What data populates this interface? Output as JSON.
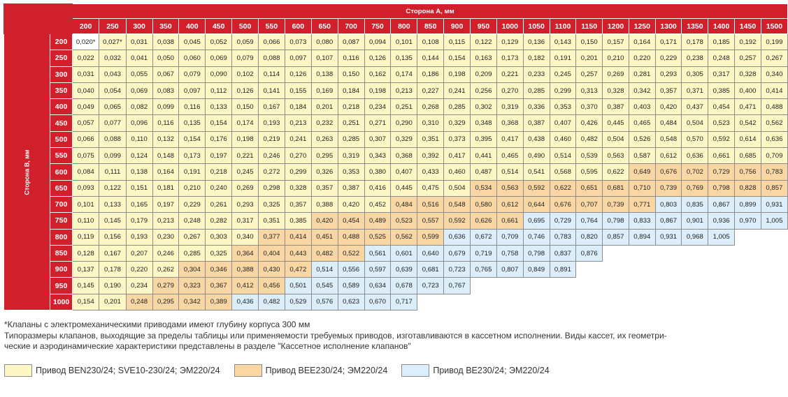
{
  "header": {
    "top_label": "Сторона А, мм",
    "side_label": "Сторона В, мм"
  },
  "columns": [
    "200",
    "250",
    "300",
    "350",
    "400",
    "450",
    "500",
    "550",
    "600",
    "650",
    "700",
    "750",
    "800",
    "850",
    "900",
    "950",
    "1000",
    "1050",
    "1100",
    "1150",
    "1200",
    "1250",
    "1300",
    "1350",
    "1400",
    "1450",
    "1500"
  ],
  "rows": [
    {
      "b": "200",
      "values": [
        "0,020*",
        "0,027*",
        "0,031",
        "0,038",
        "0,045",
        "0,052",
        "0,059",
        "0,066",
        "0,073",
        "0,080",
        "0,087",
        "0,094",
        "0,101",
        "0,108",
        "0,115",
        "0,122",
        "0,129",
        "0,136",
        "0,143",
        "0,150",
        "0,157",
        "0,164",
        "0,171",
        "0,178",
        "0,185",
        "0,192",
        "0,199"
      ],
      "colors": [
        0,
        1,
        1,
        1,
        1,
        1,
        1,
        1,
        1,
        1,
        1,
        1,
        1,
        1,
        1,
        1,
        1,
        1,
        1,
        1,
        1,
        1,
        1,
        1,
        1,
        1,
        1
      ]
    },
    {
      "b": "250",
      "values": [
        "0,022",
        "0,032",
        "0,041",
        "0,050",
        "0,060",
        "0,069",
        "0,079",
        "0,088",
        "0,097",
        "0,107",
        "0,116",
        "0,126",
        "0,135",
        "0,144",
        "0,154",
        "0,163",
        "0,173",
        "0,182",
        "0,191",
        "0,201",
        "0,210",
        "0,220",
        "0,229",
        "0,238",
        "0,248",
        "0,257",
        "0,267"
      ],
      "colors": [
        1,
        1,
        1,
        1,
        1,
        1,
        1,
        1,
        1,
        1,
        1,
        1,
        1,
        1,
        1,
        1,
        1,
        1,
        1,
        1,
        1,
        1,
        1,
        1,
        1,
        1,
        1
      ]
    },
    {
      "b": "300",
      "values": [
        "0,031",
        "0,043",
        "0,055",
        "0,067",
        "0,079",
        "0,090",
        "0,102",
        "0,114",
        "0,126",
        "0,138",
        "0,150",
        "0,162",
        "0,174",
        "0,186",
        "0,198",
        "0,209",
        "0,221",
        "0,233",
        "0,245",
        "0,257",
        "0,269",
        "0,281",
        "0,293",
        "0,305",
        "0,317",
        "0,328",
        "0,340"
      ],
      "colors": [
        1,
        1,
        1,
        1,
        1,
        1,
        1,
        1,
        1,
        1,
        1,
        1,
        1,
        1,
        1,
        1,
        1,
        1,
        1,
        1,
        1,
        1,
        1,
        1,
        1,
        1,
        1
      ]
    },
    {
      "b": "350",
      "values": [
        "0,040",
        "0,054",
        "0,069",
        "0,083",
        "0,097",
        "0,112",
        "0,126",
        "0,141",
        "0,155",
        "0,169",
        "0,184",
        "0,198",
        "0,213",
        "0,227",
        "0,241",
        "0,256",
        "0,270",
        "0,285",
        "0,299",
        "0,313",
        "0,328",
        "0,342",
        "0,357",
        "0,371",
        "0,385",
        "0,400",
        "0,414"
      ],
      "colors": [
        1,
        1,
        1,
        1,
        1,
        1,
        1,
        1,
        1,
        1,
        1,
        1,
        1,
        1,
        1,
        1,
        1,
        1,
        1,
        1,
        1,
        1,
        1,
        1,
        1,
        1,
        1
      ]
    },
    {
      "b": "400",
      "values": [
        "0,049",
        "0,065",
        "0,082",
        "0,099",
        "0,116",
        "0,133",
        "0,150",
        "0,167",
        "0,184",
        "0,201",
        "0,218",
        "0,234",
        "0,251",
        "0,268",
        "0,285",
        "0,302",
        "0,319",
        "0,336",
        "0,353",
        "0,370",
        "0,387",
        "0,403",
        "0,420",
        "0,437",
        "0,454",
        "0,471",
        "0,488"
      ],
      "colors": [
        1,
        1,
        1,
        1,
        1,
        1,
        1,
        1,
        1,
        1,
        1,
        1,
        1,
        1,
        1,
        1,
        1,
        1,
        1,
        1,
        1,
        1,
        1,
        1,
        1,
        1,
        1
      ]
    },
    {
      "b": "450",
      "values": [
        "0,057",
        "0,077",
        "0,096",
        "0,116",
        "0,135",
        "0,154",
        "0,174",
        "0,193",
        "0,213",
        "0,232",
        "0,251",
        "0,271",
        "0,290",
        "0,310",
        "0,329",
        "0,348",
        "0,368",
        "0,387",
        "0,407",
        "0,426",
        "0,445",
        "0,465",
        "0,484",
        "0,504",
        "0,523",
        "0,542",
        "0,562"
      ],
      "colors": [
        1,
        1,
        1,
        1,
        1,
        1,
        1,
        1,
        1,
        1,
        1,
        1,
        1,
        1,
        1,
        1,
        1,
        1,
        1,
        1,
        1,
        1,
        1,
        1,
        1,
        1,
        1
      ]
    },
    {
      "b": "500",
      "values": [
        "0,066",
        "0,088",
        "0,110",
        "0,132",
        "0,154",
        "0,176",
        "0,198",
        "0,219",
        "0,241",
        "0,263",
        "0,285",
        "0,307",
        "0,329",
        "0,351",
        "0,373",
        "0,395",
        "0,417",
        "0,438",
        "0,460",
        "0,482",
        "0,504",
        "0,526",
        "0,548",
        "0,570",
        "0,592",
        "0,614",
        "0,636"
      ],
      "colors": [
        1,
        1,
        1,
        1,
        1,
        1,
        1,
        1,
        1,
        1,
        1,
        1,
        1,
        1,
        1,
        1,
        1,
        1,
        1,
        1,
        1,
        1,
        1,
        1,
        1,
        1,
        1
      ]
    },
    {
      "b": "550",
      "values": [
        "0,075",
        "0,099",
        "0,124",
        "0,148",
        "0,173",
        "0,197",
        "0,221",
        "0,246",
        "0,270",
        "0,295",
        "0,319",
        "0,343",
        "0,368",
        "0,392",
        "0,417",
        "0,441",
        "0,465",
        "0,490",
        "0,514",
        "0,539",
        "0,563",
        "0,587",
        "0,612",
        "0,636",
        "0,661",
        "0,685",
        "0,709"
      ],
      "colors": [
        1,
        1,
        1,
        1,
        1,
        1,
        1,
        1,
        1,
        1,
        1,
        1,
        1,
        1,
        1,
        1,
        1,
        1,
        1,
        1,
        1,
        1,
        1,
        1,
        1,
        1,
        1
      ]
    },
    {
      "b": "600",
      "values": [
        "0,084",
        "0,111",
        "0,138",
        "0,164",
        "0,191",
        "0,218",
        "0,245",
        "0,272",
        "0,299",
        "0,326",
        "0,353",
        "0,380",
        "0,407",
        "0,433",
        "0,460",
        "0,487",
        "0,514",
        "0,541",
        "0,568",
        "0,595",
        "0,622",
        "0,649",
        "0,676",
        "0,702",
        "0,729",
        "0,756",
        "0,783"
      ],
      "colors": [
        1,
        1,
        1,
        1,
        1,
        1,
        1,
        1,
        1,
        1,
        1,
        1,
        1,
        1,
        1,
        1,
        1,
        1,
        1,
        1,
        1,
        2,
        2,
        2,
        2,
        2,
        2
      ]
    },
    {
      "b": "650",
      "values": [
        "0,093",
        "0,122",
        "0,151",
        "0,181",
        "0,210",
        "0,240",
        "0,269",
        "0,298",
        "0,328",
        "0,357",
        "0,387",
        "0,416",
        "0,445",
        "0,475",
        "0,504",
        "0,534",
        "0,563",
        "0,592",
        "0,622",
        "0,651",
        "0,681",
        "0,710",
        "0,739",
        "0,769",
        "0,798",
        "0,828",
        "0,857"
      ],
      "colors": [
        1,
        1,
        1,
        1,
        1,
        1,
        1,
        1,
        1,
        1,
        1,
        1,
        1,
        1,
        1,
        2,
        2,
        2,
        2,
        2,
        2,
        2,
        2,
        2,
        2,
        2,
        2
      ]
    },
    {
      "b": "700",
      "values": [
        "0,101",
        "0,133",
        "0,165",
        "0,197",
        "0,229",
        "0,261",
        "0,293",
        "0,325",
        "0,357",
        "0,388",
        "0,420",
        "0,452",
        "0,484",
        "0,516",
        "0,548",
        "0,580",
        "0,612",
        "0,644",
        "0,676",
        "0,707",
        "0,739",
        "0,771",
        "0,803",
        "0,835",
        "0,867",
        "0,899",
        "0,931"
      ],
      "colors": [
        1,
        1,
        1,
        1,
        1,
        1,
        1,
        1,
        1,
        1,
        1,
        1,
        2,
        2,
        2,
        2,
        2,
        2,
        2,
        2,
        2,
        2,
        3,
        3,
        3,
        3,
        3
      ]
    },
    {
      "b": "750",
      "values": [
        "0,110",
        "0,145",
        "0,179",
        "0,213",
        "0,248",
        "0,282",
        "0,317",
        "0,351",
        "0,385",
        "0,420",
        "0,454",
        "0,489",
        "0,523",
        "0,557",
        "0,592",
        "0,626",
        "0,661",
        "0,695",
        "0,729",
        "0,764",
        "0,798",
        "0,833",
        "0,867",
        "0,901",
        "0,936",
        "0,970",
        "1,005"
      ],
      "colors": [
        1,
        1,
        1,
        1,
        1,
        1,
        1,
        1,
        1,
        2,
        2,
        2,
        2,
        2,
        2,
        2,
        2,
        3,
        3,
        3,
        3,
        3,
        3,
        3,
        3,
        3,
        3
      ]
    },
    {
      "b": "800",
      "values": [
        "0,119",
        "0,156",
        "0,193",
        "0,230",
        "0,267",
        "0,303",
        "0,340",
        "0,377",
        "0,414",
        "0,451",
        "0,488",
        "0,525",
        "0,562",
        "0,599",
        "0,636",
        "0,672",
        "0,709",
        "0,746",
        "0,783",
        "0,820",
        "0,857",
        "0,894",
        "0,931",
        "0,968",
        "1,005",
        "",
        ""
      ],
      "colors": [
        1,
        1,
        1,
        1,
        1,
        1,
        1,
        2,
        2,
        2,
        2,
        2,
        2,
        2,
        3,
        3,
        3,
        3,
        3,
        3,
        3,
        3,
        3,
        3,
        3,
        -1,
        -1
      ]
    },
    {
      "b": "850",
      "values": [
        "0,128",
        "0,167",
        "0,207",
        "0,246",
        "0,285",
        "0,325",
        "0,364",
        "0,404",
        "0,443",
        "0,482",
        "0,522",
        "0,561",
        "0,601",
        "0,640",
        "0,679",
        "0,719",
        "0,758",
        "0,798",
        "0,837",
        "0,876",
        "",
        "",
        "",
        "",
        "",
        "",
        ""
      ],
      "colors": [
        1,
        1,
        1,
        1,
        1,
        1,
        2,
        2,
        2,
        2,
        2,
        3,
        3,
        3,
        3,
        3,
        3,
        3,
        3,
        3,
        -1,
        -1,
        -1,
        -1,
        -1,
        -1,
        -1
      ]
    },
    {
      "b": "900",
      "values": [
        "0,137",
        "0,178",
        "0,220",
        "0,262",
        "0,304",
        "0,346",
        "0,388",
        "0,430",
        "0,472",
        "0,514",
        "0,556",
        "0,597",
        "0,639",
        "0,681",
        "0,723",
        "0,765",
        "0,807",
        "0,849",
        "0,891",
        "",
        "",
        "",
        "",
        "",
        "",
        "",
        ""
      ],
      "colors": [
        1,
        1,
        1,
        1,
        2,
        2,
        2,
        2,
        2,
        3,
        3,
        3,
        3,
        3,
        3,
        3,
        3,
        3,
        3,
        -1,
        -1,
        -1,
        -1,
        -1,
        -1,
        -1,
        -1
      ]
    },
    {
      "b": "950",
      "values": [
        "0,145",
        "0,190",
        "0,234",
        "0,279",
        "0,323",
        "0,367",
        "0,412",
        "0,456",
        "0,501",
        "0,545",
        "0,589",
        "0,634",
        "0,678",
        "0,723",
        "0,767",
        "",
        "",
        "",
        "",
        "",
        "",
        "",
        "",
        "",
        "",
        "",
        ""
      ],
      "colors": [
        1,
        1,
        1,
        2,
        2,
        2,
        2,
        2,
        3,
        3,
        3,
        3,
        3,
        3,
        3,
        -1,
        -1,
        -1,
        -1,
        -1,
        -1,
        -1,
        -1,
        -1,
        -1,
        -1,
        -1
      ]
    },
    {
      "b": "1000",
      "values": [
        "0,154",
        "0,201",
        "0,248",
        "0,295",
        "0,342",
        "0,389",
        "0,436",
        "0,482",
        "0,529",
        "0,576",
        "0,623",
        "0,670",
        "0,717",
        "",
        "",
        "",
        "",
        "",
        "",
        "",
        "",
        "",
        "",
        "",
        "",
        "",
        ""
      ],
      "colors": [
        1,
        1,
        2,
        2,
        2,
        2,
        3,
        3,
        3,
        3,
        3,
        3,
        3,
        -1,
        -1,
        -1,
        -1,
        -1,
        -1,
        -1,
        -1,
        -1,
        -1,
        -1,
        -1,
        -1,
        -1
      ]
    }
  ],
  "notes": {
    "line1": "*Клапаны с электромеханическими приводами имеют глубину корпуса 300 мм",
    "line2": "Типоразмеры клапанов, выходящие за пределы таблицы или применяемости требуемых приводов, изготавливаются в кассетном исполнении. Виды кассет, их геометри-",
    "line3": "ческие и аэродинамические характеристики представлены в разделе \"Кассетное исполнение клапанов\""
  },
  "legend": [
    {
      "label": "Привод BEN230/24; SVE10-230/24; ЭМ220/24",
      "color": "#fdf7c6"
    },
    {
      "label": "Привод BEE230/24; ЭМ220/24",
      "color": "#f9d7a5"
    },
    {
      "label": "Привод BE230/24; ЭМ220/24",
      "color": "#dbeefa"
    }
  ],
  "colors": {
    "header_red": "#d21f2c",
    "white": "#ffffff",
    "yellow": "#fdf7c6",
    "orange": "#f9d7a5",
    "blue": "#dbeefa"
  }
}
